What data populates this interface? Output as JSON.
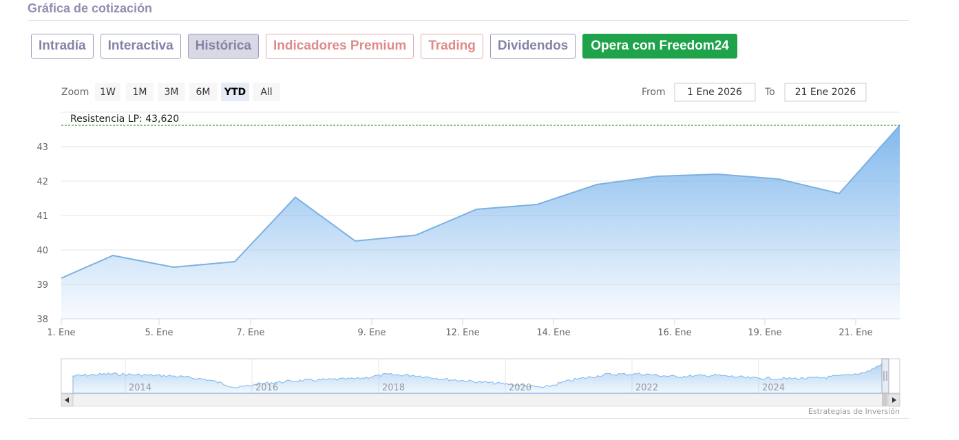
{
  "header": {
    "title": "Gráfica de cotización"
  },
  "tabs": [
    {
      "label": "Intradía",
      "state": "normal"
    },
    {
      "label": "Interactiva",
      "state": "normal"
    },
    {
      "label": "Histórica",
      "state": "active"
    },
    {
      "label": "Indicadores Premium",
      "state": "premium"
    },
    {
      "label": "Trading",
      "state": "premium"
    },
    {
      "label": "Dividendos",
      "state": "normal"
    },
    {
      "label": "Opera con Freedom24",
      "state": "cta"
    }
  ],
  "zoom": {
    "label": "Zoom",
    "buttons": [
      "1W",
      "1M",
      "3M",
      "6M",
      "YTD",
      "All"
    ],
    "selected": "YTD"
  },
  "range": {
    "from_label": "From",
    "from_value": "1 Ene 2026",
    "to_label": "To",
    "to_value": "21 Ene 2026"
  },
  "credit": "Estrategias de Inversión",
  "colors": {
    "line": "#7cb0e0",
    "fill_top": "#7cb5ec",
    "resistance": "#1a7a1a",
    "cta": "#1fa34a"
  },
  "chart_data": {
    "type": "area",
    "y_ticks": [
      "38",
      "39",
      "40",
      "41",
      "42",
      "43"
    ],
    "ylim": [
      38,
      44
    ],
    "x_ticks": [
      "1. Ene",
      "5. Ene",
      "7. Ene",
      "9. Ene",
      "12. Ene",
      "14. Ene",
      "16. Ene",
      "19. Ene",
      "21. Ene"
    ],
    "series": [
      {
        "x": [
          "1. Ene",
          "2. Ene",
          "5. Ene",
          "6. Ene",
          "7. Ene",
          "8. Ene",
          "9. Ene",
          "12. Ene",
          "13. Ene",
          "14. Ene",
          "15. Ene",
          "16. Ene",
          "19. Ene",
          "20. Ene",
          "21. Ene"
        ],
        "values": [
          39.18,
          39.84,
          39.5,
          39.66,
          41.53,
          40.26,
          40.43,
          41.18,
          41.32,
          41.9,
          42.14,
          42.2,
          42.06,
          41.64,
          43.62
        ]
      }
    ],
    "annotation": {
      "label": "Resistencia LP: 43,620",
      "value": 43.62
    },
    "navigator": {
      "year_labels": [
        "2014",
        "2016",
        "2018",
        "2020",
        "2022",
        "2024"
      ]
    }
  }
}
